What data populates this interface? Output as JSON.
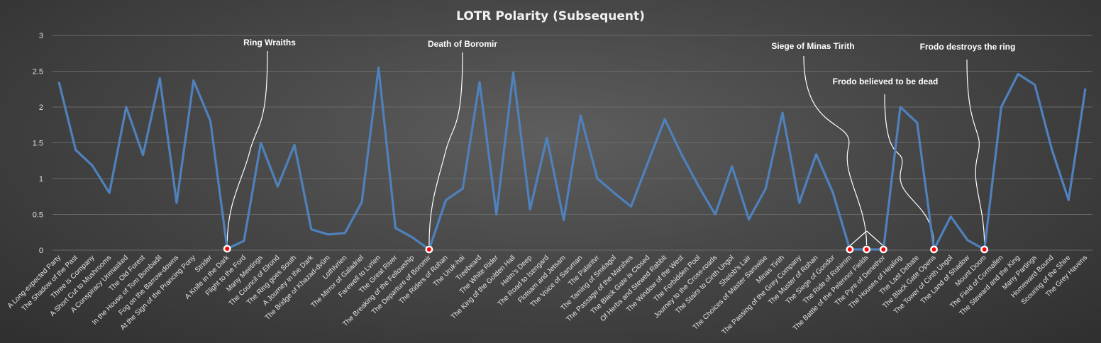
{
  "chart_data": {
    "type": "line",
    "title": "LOTR Polarity (Subsequent)",
    "xlabel": "",
    "ylabel": "",
    "ylim": [
      0,
      3
    ],
    "yticks": [
      "0",
      "0.5",
      "1",
      "1.5",
      "2",
      "2.5",
      "3"
    ],
    "grid": true,
    "line_color": "#4f81bd",
    "marker_color": "#ff0000",
    "categories": [
      "A Long-expected Party",
      "The Shadow of the Past",
      "Three is Company",
      "A Short Cut to Mushrooms",
      "A Conspiracy Unmasked",
      "The Old Forest",
      "In the House of Tom Bombadil",
      "Fog on the Barrow-downs",
      "At the Sign of the Prancing Pony",
      "Strider",
      "A Knife in the Dark",
      "Flight to the Ford",
      "Many Meetings",
      "The Council of Elrond",
      "The Ring goes South",
      "A Journey in the Dark",
      "The Bridge of Khazad-dvûm",
      "Lothlvrien",
      "The Mirror of Galadriel",
      "Farewell to Lvrien",
      "The Great River",
      "The Breaking of the Fellowship",
      "The Departure of Boromir",
      "The Riders of Rohan",
      "The Uruk-hai",
      "Treebeard",
      "The White Rider",
      "The King of the Golden Hall",
      "Helm's Deep",
      "The Road to Isengard",
      "Flotsam and Jetsam",
      "The Voice of Saruman",
      "The Palantvr",
      "The Taming of Sméagol",
      "The Passage of the Marshes",
      "The Black Gate is Closed",
      "Of Herbs and Stewed Rabbit",
      "The Window of the West",
      "The Forbidden Pool",
      "Journey to the Cross-roads",
      "The Stairs to Cirith Ungol",
      "Shelob's Lair",
      "The Choices of Master Samwise",
      "Minas Tirith",
      "The Passing of the Grey Company",
      "The Muster of Rohan",
      "The Siege of Gondor",
      "The Ride of Rohirrim",
      "The Battle of the Pelennor Fields",
      "The Pyre of Denethor",
      "The Houses of Healing",
      "The Last Debate",
      "The Black Gate Opens",
      "The Tower of Cirith Ungol",
      "The Land of Shadow",
      "Mount Doom",
      "The Field of Cormallen",
      "The Steward and the King",
      "Many Partings",
      "Homeward Bound",
      "Scouring of the Shire",
      "The Grey Havens"
    ],
    "values": [
      2.35,
      1.4,
      1.18,
      0.8,
      2.0,
      1.33,
      2.4,
      0.66,
      2.37,
      1.81,
      0.02,
      0.13,
      1.5,
      0.89,
      1.47,
      0.29,
      0.22,
      0.24,
      0.67,
      2.55,
      0.31,
      0.18,
      0.01,
      0.7,
      0.86,
      2.35,
      0.5,
      2.48,
      0.57,
      1.57,
      0.42,
      1.88,
      1.0,
      0.8,
      0.61,
      1.22,
      1.83,
      1.34,
      0.9,
      0.5,
      1.17,
      0.43,
      0.86,
      1.92,
      0.66,
      1.34,
      0.8,
      0.01,
      0.01,
      0.01,
      2.0,
      1.78,
      0.01,
      0.47,
      0.14,
      0.01,
      2.0,
      2.46,
      2.31,
      1.41,
      0.7,
      2.26
    ],
    "highlight_indices": [
      10,
      22,
      47,
      48,
      49,
      52,
      55
    ],
    "annotations": [
      {
        "text": "Ring Wraiths",
        "index": 10
      },
      {
        "text": "Death of Boromir",
        "index": 22
      },
      {
        "text": "Siege of Minas Tirith",
        "index": 48
      },
      {
        "text": "Frodo believed to be dead",
        "index": 52
      },
      {
        "text": "Frodo destroys the ring",
        "index": 55
      }
    ]
  }
}
